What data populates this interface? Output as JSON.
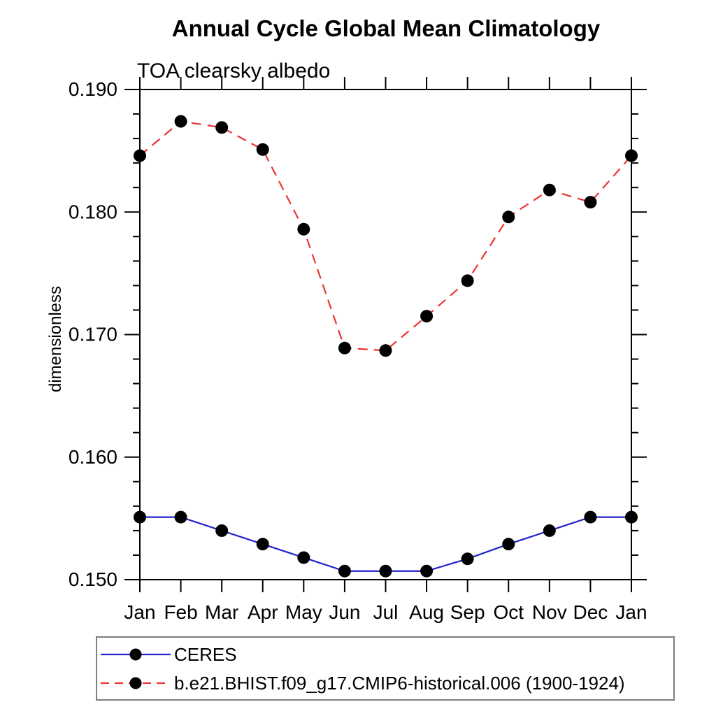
{
  "chart_data": {
    "type": "line",
    "title": "Annual Cycle Global Mean Climatology",
    "subtitle": "TOA clearsky albedo",
    "ylabel": "dimensionless",
    "x_categories": [
      "Jan",
      "Feb",
      "Mar",
      "Apr",
      "May",
      "Jun",
      "Jul",
      "Aug",
      "Sep",
      "Oct",
      "Nov",
      "Dec",
      "Jan"
    ],
    "ylim": [
      0.15,
      0.19
    ],
    "ytick_values": [
      0.15,
      0.16,
      0.17,
      0.18,
      0.19
    ],
    "ytick_labels": [
      "0.150",
      "0.160",
      "0.170",
      "0.180",
      "0.190"
    ],
    "ytick_minor_step": 0.002,
    "grid": false,
    "frame_color": "#000000",
    "marker_shape": "filled-circle",
    "legend_position": "bottom-left",
    "series": [
      {
        "name": "CERES",
        "color": "#2222cc",
        "line_style": "solid",
        "marker_color": "#000000",
        "values": [
          0.1551,
          0.1551,
          0.154,
          0.1529,
          0.1518,
          0.1507,
          0.1507,
          0.1507,
          0.1517,
          0.1529,
          0.154,
          0.1551,
          0.1551
        ]
      },
      {
        "name": "b.e21.BHIST.f09_g17.CMIP6-historical.006 (1900-1924)",
        "color": "#ee3333",
        "line_style": "dashed",
        "marker_color": "#000000",
        "values": [
          0.1846,
          0.1874,
          0.1869,
          0.1851,
          0.1786,
          0.1689,
          0.1687,
          0.1715,
          0.1744,
          0.1796,
          0.1818,
          0.1808,
          0.1846
        ]
      }
    ]
  }
}
